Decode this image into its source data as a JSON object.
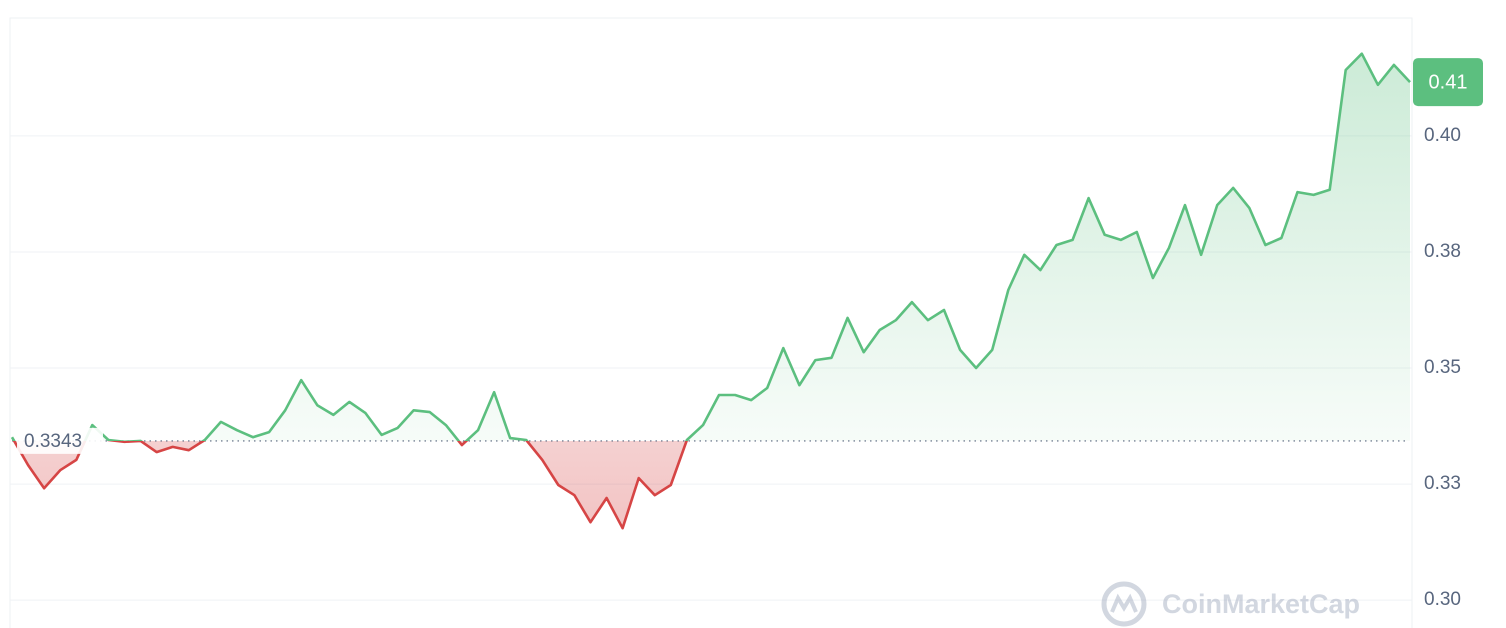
{
  "chart_data": {
    "type": "line",
    "values": [
      0.3351,
      0.3291,
      0.3241,
      0.328,
      0.3302,
      0.3377,
      0.3345,
      0.3341,
      0.3343,
      0.3319,
      0.333,
      0.3323,
      0.3345,
      0.3384,
      0.3366,
      0.3351,
      0.3362,
      0.3409,
      0.3474,
      0.342,
      0.3399,
      0.3427,
      0.3403,
      0.3356,
      0.3371,
      0.3409,
      0.3405,
      0.3377,
      0.3334,
      0.3366,
      0.3448,
      0.3349,
      0.3345,
      0.3302,
      0.3248,
      0.3226,
      0.3168,
      0.322,
      0.3155,
      0.3263,
      0.3226,
      0.3248,
      0.3345,
      0.3377,
      0.3442,
      0.3442,
      0.3431,
      0.3457,
      0.3543,
      0.3463,
      0.3517,
      0.3522,
      0.3608,
      0.3534,
      0.3582,
      0.3603,
      0.3642,
      0.3603,
      0.3625,
      0.3539,
      0.35,
      0.3539,
      0.3668,
      0.3744,
      0.3711,
      0.3765,
      0.3776,
      0.3866,
      0.3787,
      0.3776,
      0.3793,
      0.3694,
      0.3759,
      0.3851,
      0.3744,
      0.3851,
      0.3888,
      0.3845,
      0.3765,
      0.378,
      0.3879,
      0.3873,
      0.3884,
      0.4142,
      0.4177,
      0.411,
      0.4153,
      0.4116
    ],
    "baseline": 0.3343,
    "current_price": {
      "value": 0.4116,
      "label": "0.41"
    },
    "up_color": "#5cbf7f",
    "down_color": "#d64545",
    "ylim": [
      0.294,
      0.4254
    ],
    "yticks": [
      {
        "value": 0.3,
        "label": "0.30"
      },
      {
        "value": 0.325,
        "label": "0.33"
      },
      {
        "value": 0.35,
        "label": "0.35"
      },
      {
        "value": 0.375,
        "label": "0.38"
      },
      {
        "value": 0.4,
        "label": "0.40"
      }
    ],
    "grid": true,
    "watermark": "CoinMarketCap"
  }
}
